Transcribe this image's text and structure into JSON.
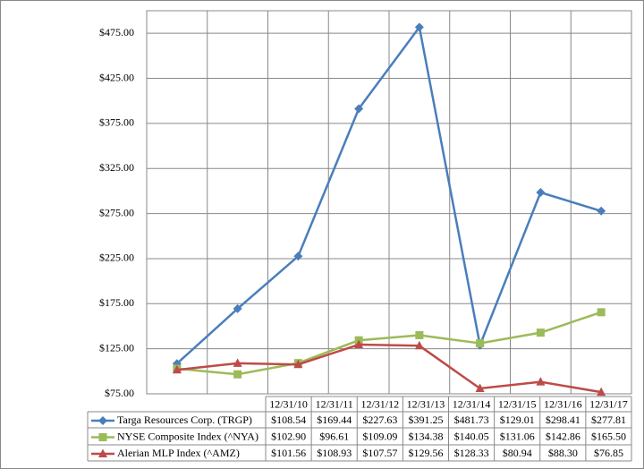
{
  "chart_data": {
    "type": "line",
    "categories": [
      "12/31/10",
      "12/31/11",
      "12/31/12",
      "12/31/13",
      "12/31/14",
      "12/31/15",
      "12/31/16",
      "12/31/17"
    ],
    "series": [
      {
        "name": "Targa Resources Corp. (TRGP)",
        "color": "#4a7ebb",
        "marker": "diamond",
        "values": [
          108.54,
          169.44,
          227.63,
          391.25,
          481.73,
          129.01,
          298.41,
          277.81
        ],
        "value_labels": [
          "$108.54",
          "$169.44",
          "$227.63",
          "$391.25",
          "$481.73",
          "$129.01",
          "$298.41",
          "$277.81"
        ]
      },
      {
        "name": "NYSE Composite Index (^NYA)",
        "color": "#9bbb59",
        "marker": "square",
        "values": [
          102.9,
          96.61,
          109.09,
          134.38,
          140.05,
          131.06,
          142.86,
          165.5
        ],
        "value_labels": [
          "$102.90",
          "$96.61",
          "$109.09",
          "$134.38",
          "$140.05",
          "$131.06",
          "$142.86",
          "$165.50"
        ]
      },
      {
        "name": "Alerian MLP Index (^AMZ)",
        "color": "#be4b48",
        "marker": "triangle",
        "values": [
          101.56,
          108.93,
          107.57,
          129.56,
          128.33,
          80.94,
          88.3,
          76.85
        ],
        "value_labels": [
          "$101.56",
          "$108.93",
          "$107.57",
          "$129.56",
          "$128.33",
          "$80.94",
          "$88.30",
          "$76.85"
        ]
      }
    ],
    "ylim": [
      75,
      500
    ],
    "yticks": [
      {
        "value": 75,
        "label": "$75.00"
      },
      {
        "value": 125,
        "label": "$125.00"
      },
      {
        "value": 175,
        "label": "$175.00"
      },
      {
        "value": 225,
        "label": "$225.00"
      },
      {
        "value": 275,
        "label": "$275.00"
      },
      {
        "value": 325,
        "label": "$325.00"
      },
      {
        "value": 375,
        "label": "$375.00"
      },
      {
        "value": 425,
        "label": "$425.00"
      },
      {
        "value": 475,
        "label": "$475.00"
      }
    ],
    "grid": true
  }
}
